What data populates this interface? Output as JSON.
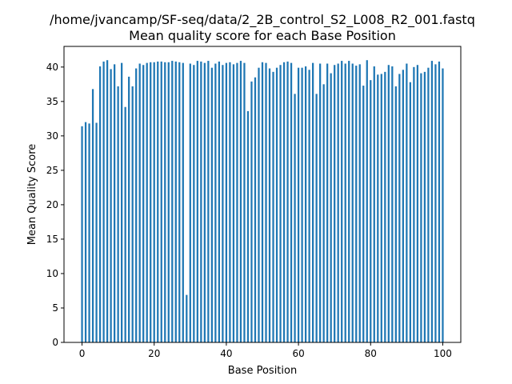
{
  "chart_data": {
    "type": "bar",
    "title": "/home/jvancamp/SF-seq/data/2_2B_control_S2_L008_R2_001.fastq",
    "subtitle": "Mean quality score for each Base Position",
    "xlabel": "Base Position",
    "ylabel": "Mean Quality Score",
    "xlim": [
      -5,
      105
    ],
    "ylim": [
      0,
      43
    ],
    "xticks": [
      "0",
      "20",
      "40",
      "60",
      "80",
      "100"
    ],
    "yticks": [
      "0",
      "5",
      "10",
      "15",
      "20",
      "25",
      "30",
      "35",
      "40"
    ],
    "grid": false,
    "bar_color": "#1f77b4",
    "x": [
      0,
      1,
      2,
      3,
      4,
      5,
      6,
      7,
      8,
      9,
      10,
      11,
      12,
      13,
      14,
      15,
      16,
      17,
      18,
      19,
      20,
      21,
      22,
      23,
      24,
      25,
      26,
      27,
      28,
      29,
      30,
      31,
      32,
      33,
      34,
      35,
      36,
      37,
      38,
      39,
      40,
      41,
      42,
      43,
      44,
      45,
      46,
      47,
      48,
      49,
      50,
      51,
      52,
      53,
      54,
      55,
      56,
      57,
      58,
      59,
      60,
      61,
      62,
      63,
      64,
      65,
      66,
      67,
      68,
      69,
      70,
      71,
      72,
      73,
      74,
      75,
      76,
      77,
      78,
      79,
      80,
      81,
      82,
      83,
      84,
      85,
      86,
      87,
      88,
      89,
      90,
      91,
      92,
      93,
      94,
      95,
      96,
      97,
      98,
      99,
      100
    ],
    "values": [
      31.4,
      32.0,
      31.8,
      36.8,
      31.9,
      40.1,
      40.8,
      41.0,
      39.7,
      40.4,
      37.2,
      40.6,
      34.2,
      38.6,
      37.2,
      39.8,
      40.5,
      40.3,
      40.6,
      40.7,
      40.7,
      40.8,
      40.8,
      40.7,
      40.7,
      40.9,
      40.8,
      40.7,
      40.6,
      6.9,
      40.5,
      40.3,
      40.9,
      40.8,
      40.6,
      40.9,
      39.9,
      40.5,
      40.8,
      40.3,
      40.6,
      40.7,
      40.4,
      40.6,
      40.9,
      40.6,
      33.6,
      37.9,
      38.5,
      39.9,
      40.7,
      40.6,
      39.8,
      39.3,
      39.9,
      40.3,
      40.7,
      40.8,
      40.6,
      36.1,
      39.9,
      39.9,
      40.1,
      39.6,
      40.6,
      36.1,
      40.5,
      37.5,
      40.5,
      39.1,
      40.3,
      40.5,
      40.9,
      40.5,
      40.9,
      40.5,
      40.2,
      40.4,
      37.3,
      41.0,
      38.1,
      40.1,
      38.9,
      39.0,
      39.3,
      40.3,
      40.1,
      37.2,
      39.0,
      39.6,
      40.5,
      37.8,
      40.0,
      40.3,
      39.1,
      39.3,
      39.9,
      40.9,
      40.4,
      40.8,
      39.8
    ]
  }
}
